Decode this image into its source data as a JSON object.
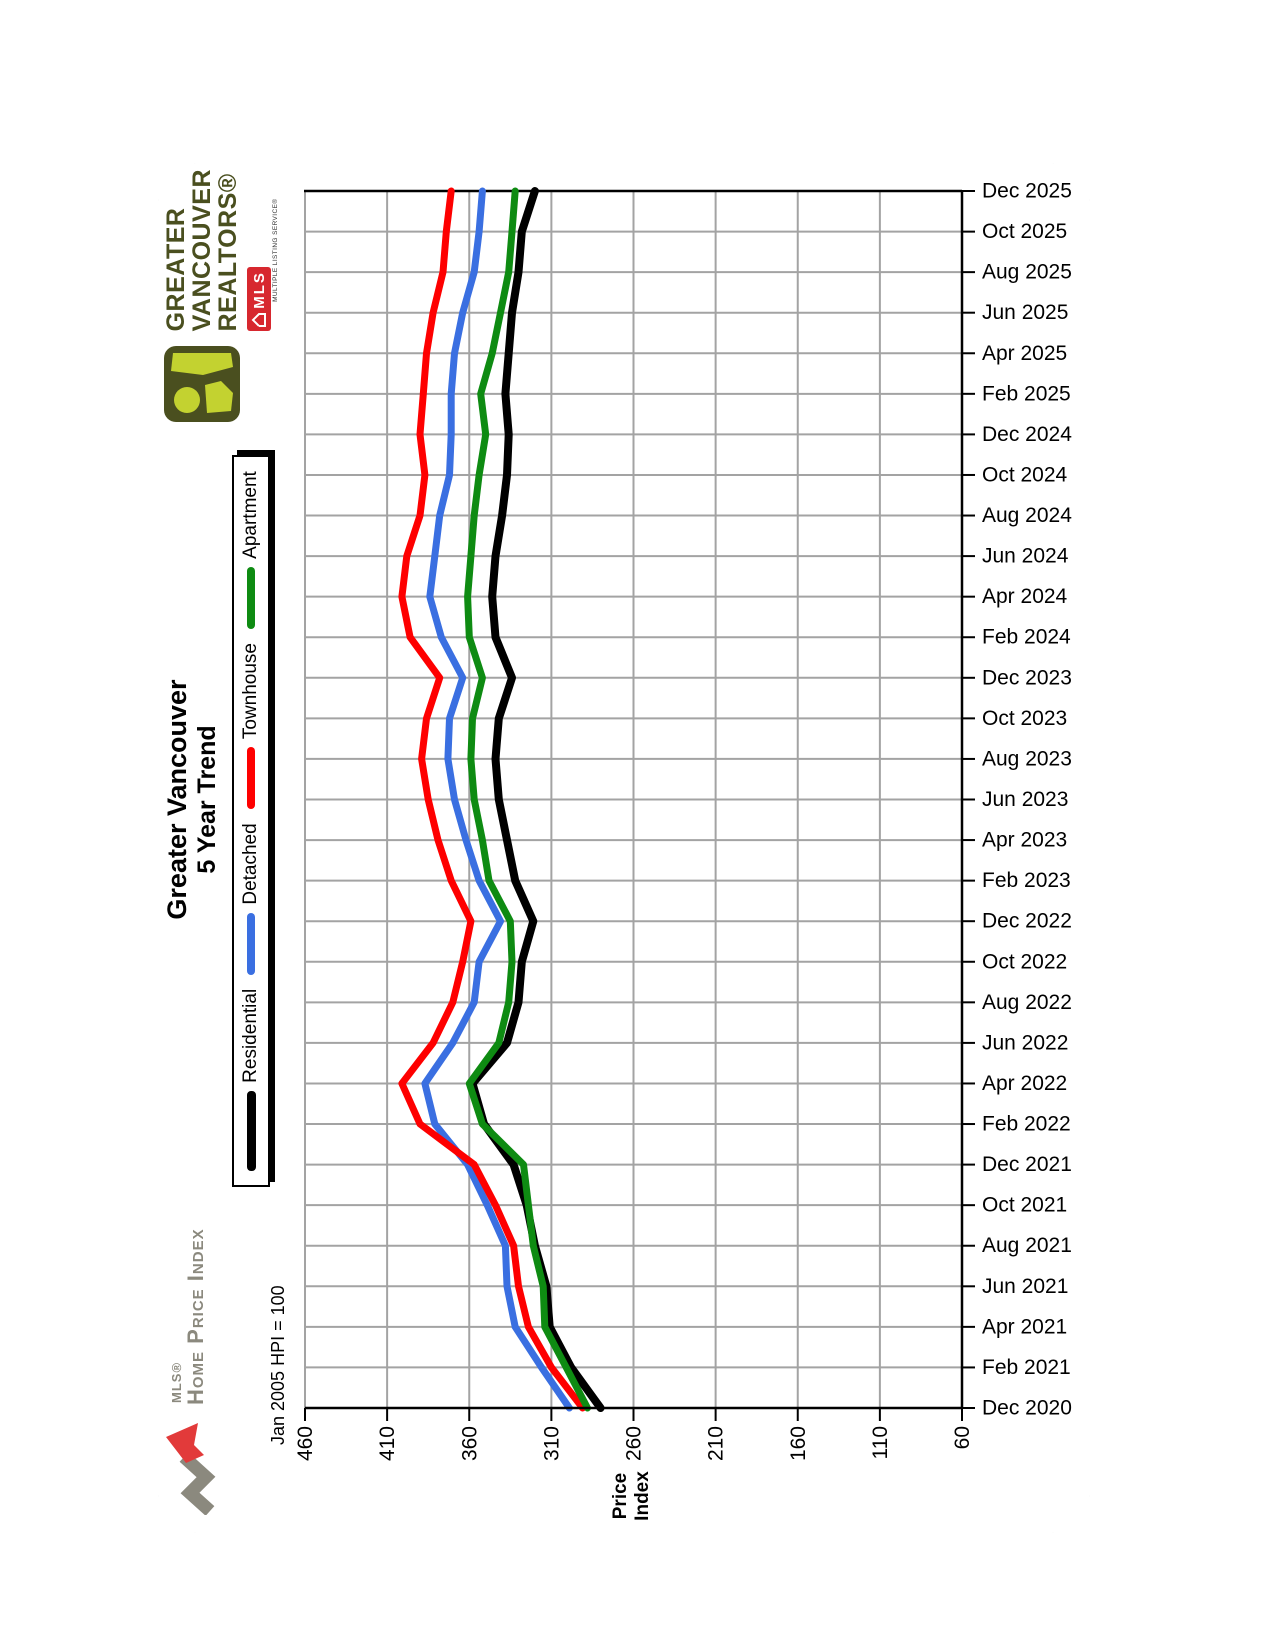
{
  "branding": {
    "hpi_brand_small": "MLS®",
    "hpi_brand": "Home Price Index",
    "annotation": "Jan 2005 HPI = 100",
    "gvr_line1": "GREATER",
    "gvr_line2": "VANCOUVER",
    "gvr_line3": "REALTORS®",
    "mls_box_text": "MLS",
    "mls_box_sub": "MULTIPLE LISTING SERVICE®",
    "colors": {
      "gvr_olive": "#4a4f1f",
      "gvr_lime": "#c3d230",
      "mls_red": "#d7282f",
      "hpi_gray": "#8b897e",
      "hpi_red": "#e23a3a"
    }
  },
  "chart_data": {
    "type": "line",
    "title": "Greater Vancouver",
    "subtitle": "5 Year Trend",
    "ylabel": "Price\nIndex",
    "ylim": [
      60,
      460
    ],
    "ytick_step": 50,
    "grid": true,
    "legend_position": "top",
    "x_axis_note": "labels every 2 months, Dec 2020 through Dec 2025; page is rendered rotated 90° (dates along right edge, index scale along bottom)",
    "categories": [
      "Dec 2020",
      "Feb 2021",
      "Apr 2021",
      "Jun 2021",
      "Aug 2021",
      "Oct 2021",
      "Dec 2021",
      "Feb 2022",
      "Apr 2022",
      "Jun 2022",
      "Aug 2022",
      "Oct 2022",
      "Dec 2022",
      "Feb 2023",
      "Apr 2023",
      "Jun 2023",
      "Aug 2023",
      "Oct 2023",
      "Dec 2023",
      "Feb 2024",
      "Apr 2024",
      "Jun 2024",
      "Aug 2024",
      "Oct 2024",
      "Dec 2024",
      "Feb 2025",
      "Apr 2025",
      "Jun 2025",
      "Aug 2025",
      "Oct 2025",
      "Dec 2025"
    ],
    "series": [
      {
        "name": "Residential",
        "color": "#000000",
        "values": [
          280,
          298,
          311,
          313,
          320,
          325,
          333,
          351,
          358,
          337,
          330,
          328,
          321,
          332,
          337,
          342,
          344,
          342,
          334,
          344,
          346,
          344,
          340,
          337,
          336,
          338,
          336,
          334,
          330,
          328,
          320
        ]
      },
      {
        "name": "Detached",
        "color": "#3a6fe1",
        "values": [
          299,
          316,
          332,
          337,
          338,
          349,
          361,
          381,
          387,
          370,
          357,
          354,
          341,
          354,
          362,
          369,
          373,
          372,
          364,
          377,
          384,
          381,
          378,
          372,
          371,
          371,
          369,
          364,
          357,
          354,
          352
        ]
      },
      {
        "name": "Townhouse",
        "color": "#fe0000",
        "values": [
          291,
          310,
          324,
          330,
          333,
          344,
          357,
          390,
          401,
          382,
          370,
          364,
          359,
          371,
          379,
          385,
          389,
          386,
          378,
          396,
          401,
          398,
          390,
          387,
          390,
          388,
          386,
          382,
          376,
          374,
          371
        ]
      },
      {
        "name": "Apartment",
        "color": "#0e8b12",
        "values": [
          288,
          301,
          314,
          315,
          321,
          324,
          327,
          352,
          360,
          342,
          336,
          334,
          335,
          348,
          352,
          357,
          359,
          358,
          352,
          360,
          361,
          359,
          357,
          354,
          350,
          353,
          346,
          341,
          336,
          334,
          332
        ]
      }
    ]
  }
}
